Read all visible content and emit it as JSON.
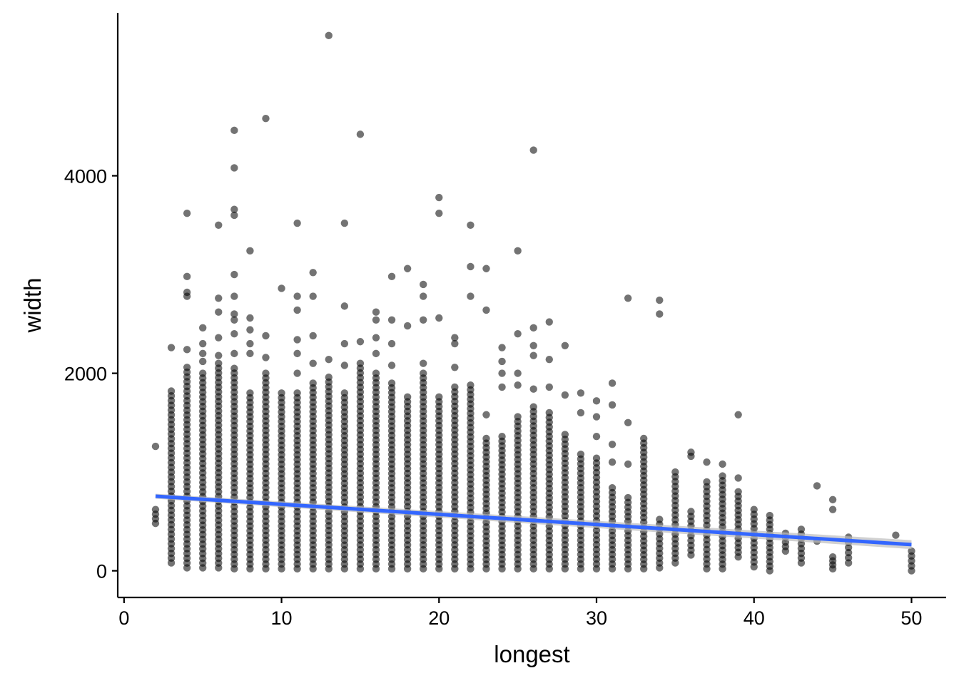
{
  "chart_data": {
    "type": "scatter",
    "title": "",
    "xlabel": "longest",
    "ylabel": "width",
    "xlim": [
      -0.4,
      52.2
    ],
    "ylim": [
      -270,
      5650
    ],
    "x_ticks": [
      0,
      10,
      20,
      30,
      40,
      50
    ],
    "x_tick_labels": [
      "0",
      "10",
      "20",
      "30",
      "40",
      "50"
    ],
    "y_ticks": [
      0,
      2000,
      4000
    ],
    "y_tick_labels": [
      "0",
      "2000",
      "4000"
    ],
    "grid": false,
    "legend": "none",
    "colors": {
      "points": "#000000",
      "trend": "#3366ff",
      "band": "#bdbdbd"
    },
    "point_opacity": 0.55,
    "series": [
      {
        "kind": "points",
        "columns": [
          {
            "x": 2,
            "min": 480,
            "max": 620,
            "extra": [
              1260
            ]
          },
          {
            "x": 3,
            "min": 80,
            "max": 1820,
            "extra": [
              2260
            ]
          },
          {
            "x": 4,
            "min": 30,
            "max": 2060,
            "extra": [
              2240,
              2780,
              2820,
              2980,
              3620
            ]
          },
          {
            "x": 5,
            "min": 30,
            "max": 2000,
            "extra": [
              2120,
              2200,
              2300,
              2460
            ]
          },
          {
            "x": 6,
            "min": 30,
            "max": 2100,
            "extra": [
              2180,
              2360,
              2620,
              2760,
              3500
            ]
          },
          {
            "x": 7,
            "min": 20,
            "max": 2050,
            "extra": [
              2200,
              2400,
              2540,
              2600,
              2780,
              3000,
              3600,
              3660,
              4080,
              4460
            ]
          },
          {
            "x": 8,
            "min": 20,
            "max": 1800,
            "extra": [
              2200,
              2300,
              2440,
              2560,
              3240
            ]
          },
          {
            "x": 9,
            "min": 20,
            "max": 2000,
            "extra": [
              2160,
              2380,
              4580
            ]
          },
          {
            "x": 10,
            "min": 20,
            "max": 1800,
            "extra": [
              2860
            ]
          },
          {
            "x": 11,
            "min": 20,
            "max": 1800,
            "extra": [
              2000,
              2200,
              2340,
              2640,
              2780,
              3520
            ]
          },
          {
            "x": 12,
            "min": 20,
            "max": 1900,
            "extra": [
              2100,
              2380,
              2780,
              3020
            ]
          },
          {
            "x": 13,
            "min": 20,
            "max": 1960,
            "extra": [
              2140,
              5420
            ]
          },
          {
            "x": 14,
            "min": 20,
            "max": 1800,
            "extra": [
              2080,
              2300,
              2680,
              3520
            ]
          },
          {
            "x": 15,
            "min": 20,
            "max": 2100,
            "extra": [
              2320,
              4420
            ]
          },
          {
            "x": 16,
            "min": 20,
            "max": 2000,
            "extra": [
              2200,
              2360,
              2540,
              2620
            ]
          },
          {
            "x": 17,
            "min": 20,
            "max": 1900,
            "extra": [
              2080,
              2300,
              2540,
              2980
            ]
          },
          {
            "x": 18,
            "min": 20,
            "max": 1760,
            "extra": [
              2480,
              3060
            ]
          },
          {
            "x": 19,
            "min": 20,
            "max": 2000,
            "extra": [
              2100,
              2540,
              2780,
              2900
            ]
          },
          {
            "x": 20,
            "min": 20,
            "max": 1760,
            "extra": [
              2560,
              3620,
              3780
            ]
          },
          {
            "x": 21,
            "min": 20,
            "max": 1860,
            "extra": [
              2060,
              2300,
              2360
            ]
          },
          {
            "x": 22,
            "min": 20,
            "max": 1880,
            "extra": [
              2780,
              3080,
              3500
            ]
          },
          {
            "x": 23,
            "min": 20,
            "max": 1340,
            "extra": [
              1580,
              2640,
              3060
            ]
          },
          {
            "x": 24,
            "min": 20,
            "max": 1360,
            "extra": [
              1860,
              2000,
              2120,
              2260
            ]
          },
          {
            "x": 25,
            "min": 20,
            "max": 1560,
            "extra": [
              1880,
              2000,
              2400,
              3240
            ]
          },
          {
            "x": 26,
            "min": 20,
            "max": 1660,
            "extra": [
              1840,
              2180,
              2280,
              2460,
              4260
            ]
          },
          {
            "x": 27,
            "min": 20,
            "max": 1600,
            "extra": [
              1860,
              2140,
              2520
            ]
          },
          {
            "x": 28,
            "min": 20,
            "max": 1380,
            "extra": [
              1780,
              2280
            ]
          },
          {
            "x": 29,
            "min": 20,
            "max": 1180,
            "extra": [
              1600,
              1800
            ]
          },
          {
            "x": 30,
            "min": 20,
            "max": 1140,
            "extra": [
              1360,
              1560,
              1720
            ]
          },
          {
            "x": 31,
            "min": 20,
            "max": 840,
            "extra": [
              1100,
              1280,
              1680,
              1900
            ]
          },
          {
            "x": 32,
            "min": 20,
            "max": 740,
            "extra": [
              1080,
              1500,
              2760
            ]
          },
          {
            "x": 33,
            "min": 20,
            "max": 1340,
            "extra": []
          },
          {
            "x": 34,
            "min": 30,
            "max": 520,
            "extra": [
              2600,
              2740
            ]
          },
          {
            "x": 35,
            "min": 80,
            "max": 1000,
            "extra": []
          },
          {
            "x": 36,
            "min": 160,
            "max": 600,
            "extra": [
              1160,
              1200
            ]
          },
          {
            "x": 37,
            "min": 20,
            "max": 900,
            "extra": [
              1100
            ]
          },
          {
            "x": 38,
            "min": 20,
            "max": 960,
            "extra": [
              1080
            ]
          },
          {
            "x": 39,
            "min": 140,
            "max": 800,
            "extra": [
              940,
              1580
            ]
          },
          {
            "x": 40,
            "min": 40,
            "max": 620,
            "extra": []
          },
          {
            "x": 41,
            "min": 0,
            "max": 560,
            "extra": []
          },
          {
            "x": 42,
            "min": 200,
            "max": 380,
            "extra": []
          },
          {
            "x": 43,
            "min": 80,
            "max": 420,
            "extra": []
          },
          {
            "x": 44,
            "min": 300,
            "max": 300,
            "extra": [
              860
            ]
          },
          {
            "x": 45,
            "min": 20,
            "max": 140,
            "extra": [
              620,
              720
            ]
          },
          {
            "x": 46,
            "min": 80,
            "max": 340,
            "extra": []
          },
          {
            "x": 49,
            "min": 360,
            "max": 360,
            "extra": []
          },
          {
            "x": 50,
            "min": 0,
            "max": 200,
            "extra": []
          }
        ]
      },
      {
        "kind": "linear-fit",
        "x": [
          2,
          50
        ],
        "y": [
          755,
          265
        ],
        "ci_halfwidth": [
          25,
          45
        ]
      }
    ]
  }
}
